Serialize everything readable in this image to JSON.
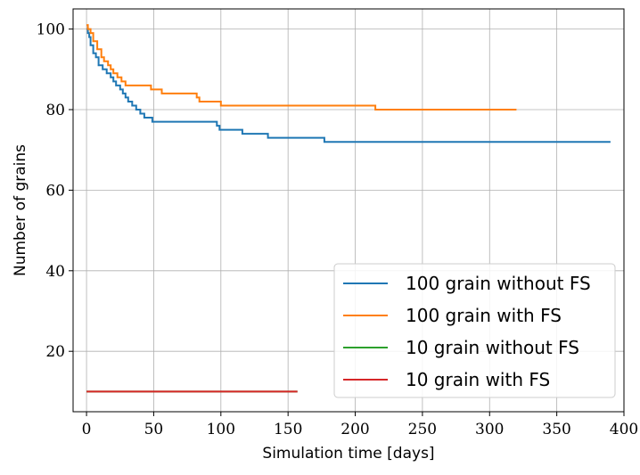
{
  "chart_data": {
    "type": "line",
    "title": "",
    "xlabel": "Simulation time [days]",
    "ylabel": "Number of grains",
    "xlim": [
      -10,
      400
    ],
    "ylim": [
      5,
      105
    ],
    "xticks": [
      0,
      50,
      100,
      150,
      200,
      250,
      300,
      350,
      400
    ],
    "yticks": [
      20,
      40,
      60,
      80,
      100
    ],
    "grid": true,
    "legend_position": "bottom-right",
    "series": [
      {
        "name": "100 grain without FS",
        "color": "#1f77b4",
        "step": true,
        "x": [
          0,
          1,
          2,
          3,
          5,
          7,
          9,
          12,
          15,
          18,
          20,
          22,
          25,
          27,
          29,
          31,
          34,
          37,
          40,
          43,
          46,
          49,
          97,
          99,
          100,
          116,
          135,
          177,
          390
        ],
        "y": [
          100,
          99,
          98,
          96,
          94,
          93,
          91,
          90,
          89,
          88,
          87,
          86,
          85,
          84,
          83,
          82,
          81,
          80,
          79,
          78,
          78,
          77,
          76,
          75,
          75,
          74,
          73,
          72,
          72
        ]
      },
      {
        "name": "100 grain with FS",
        "color": "#ff7f0e",
        "step": true,
        "x": [
          0,
          1,
          3,
          5,
          8,
          11,
          13,
          16,
          18,
          20,
          23,
          26,
          29,
          48,
          56,
          60,
          82,
          84,
          98,
          100,
          215,
          320
        ],
        "y": [
          101,
          100,
          99,
          97,
          95,
          93,
          92,
          91,
          90,
          89,
          88,
          87,
          86,
          85,
          84,
          84,
          83,
          82,
          82,
          81,
          80,
          80
        ]
      },
      {
        "name": "10 grain without FS",
        "color": "#2ca02c",
        "step": true,
        "x": [
          0,
          157
        ],
        "y": [
          10,
          10
        ]
      },
      {
        "name": "10 grain with FS",
        "color": "#d62728",
        "step": true,
        "x": [
          0,
          157
        ],
        "y": [
          10,
          10
        ]
      }
    ]
  }
}
